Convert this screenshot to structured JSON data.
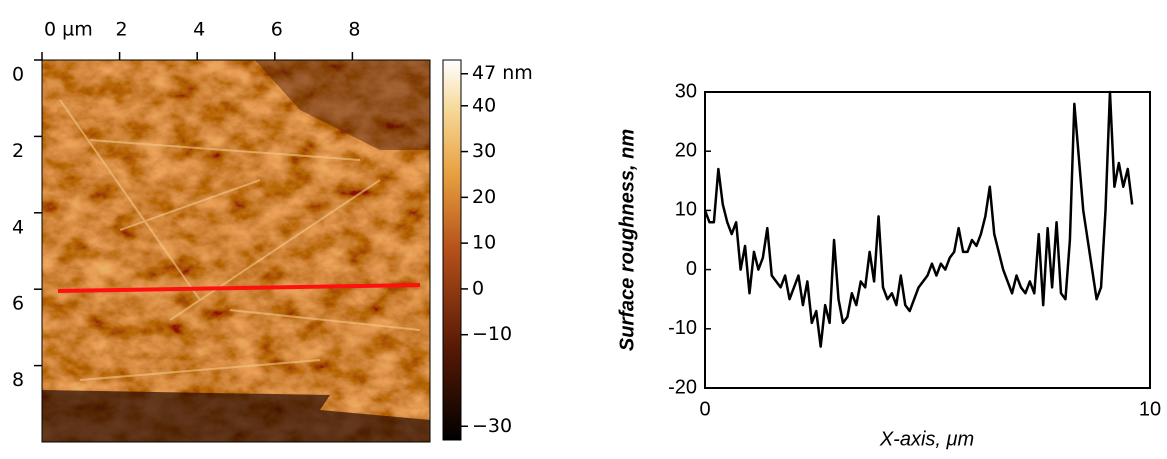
{
  "chart_data": [
    {
      "type": "image",
      "xlim": [
        0,
        10
      ],
      "xticks": [
        {
          "value": 0,
          "label": "0 µm"
        },
        2,
        4,
        6,
        8
      ],
      "ylim": [
        0,
        10
      ],
      "yticks": [
        0,
        2,
        4,
        6,
        8
      ],
      "colorbar": {
        "lim": [
          -33,
          50
        ],
        "ticks": [
          {
            "value": 47,
            "label": "47 nm"
          },
          40,
          30,
          20,
          10,
          0,
          {
            "value": -10,
            "label": "−10"
          },
          {
            "value": -30,
            "label": "−30"
          }
        ]
      }
    },
    {
      "type": "line",
      "xlabel": "X-axis, μm",
      "ylabel": "Surface roughness, nm",
      "xlim": [
        0,
        10
      ],
      "xticks": [
        0,
        10
      ],
      "ylim": [
        -20,
        30
      ],
      "yticks": [
        -20,
        -10,
        0,
        10,
        20,
        30
      ],
      "x": [
        0,
        0.1,
        0.2,
        0.3,
        0.4,
        0.5,
        0.6,
        0.7,
        0.8,
        0.9,
        1,
        1.1,
        1.2,
        1.3,
        1.4,
        1.5,
        1.6,
        1.7,
        1.8,
        1.9,
        2,
        2.1,
        2.2,
        2.3,
        2.4,
        2.5,
        2.6,
        2.7,
        2.8,
        2.9,
        3,
        3.1,
        3.2,
        3.3,
        3.4,
        3.5,
        3.6,
        3.7,
        3.8,
        3.9,
        4,
        4.1,
        4.2,
        4.3,
        4.4,
        4.5,
        4.6,
        4.7,
        4.8,
        4.9,
        5,
        5.1,
        5.2,
        5.3,
        5.4,
        5.5,
        5.6,
        5.7,
        5.8,
        5.9,
        6,
        6.1,
        6.2,
        6.3,
        6.4,
        6.5,
        6.6,
        6.7,
        6.8,
        6.9,
        7,
        7.1,
        7.2,
        7.3,
        7.4,
        7.5,
        7.6,
        7.7,
        7.8,
        7.9,
        8,
        8.1,
        8.2,
        8.3,
        8.4,
        8.5,
        8.6,
        8.7,
        8.8,
        8.9,
        9,
        9.1,
        9.2,
        9.3,
        9.4,
        9.5,
        9.6
      ],
      "series": [
        {
          "color": "#000000",
          "values": [
            10,
            8,
            8,
            17,
            11,
            8,
            6,
            8,
            0,
            4,
            -4,
            3,
            0,
            2,
            7,
            -1,
            -2,
            -3,
            -1,
            -5,
            -3,
            -1,
            -6,
            -2,
            -9,
            -7,
            -13,
            -6,
            -9,
            5,
            -5,
            -9,
            -8,
            -4,
            -6,
            -2,
            -3,
            3,
            -2,
            9,
            -3,
            -5,
            -4,
            -6,
            -1,
            -6,
            -7,
            -5,
            -3,
            -2,
            -1,
            1,
            -1,
            1,
            0,
            2,
            3,
            7,
            3,
            3,
            5,
            4,
            6,
            9,
            14,
            6,
            3,
            0,
            -2,
            -4,
            -1,
            -3,
            -4,
            -2,
            -4,
            6,
            -6,
            7,
            -3,
            8,
            -4,
            -5,
            5,
            28,
            19,
            10,
            5,
            0,
            -5,
            -3,
            10,
            30,
            14,
            18,
            14,
            17,
            11
          ]
        }
      ]
    }
  ]
}
